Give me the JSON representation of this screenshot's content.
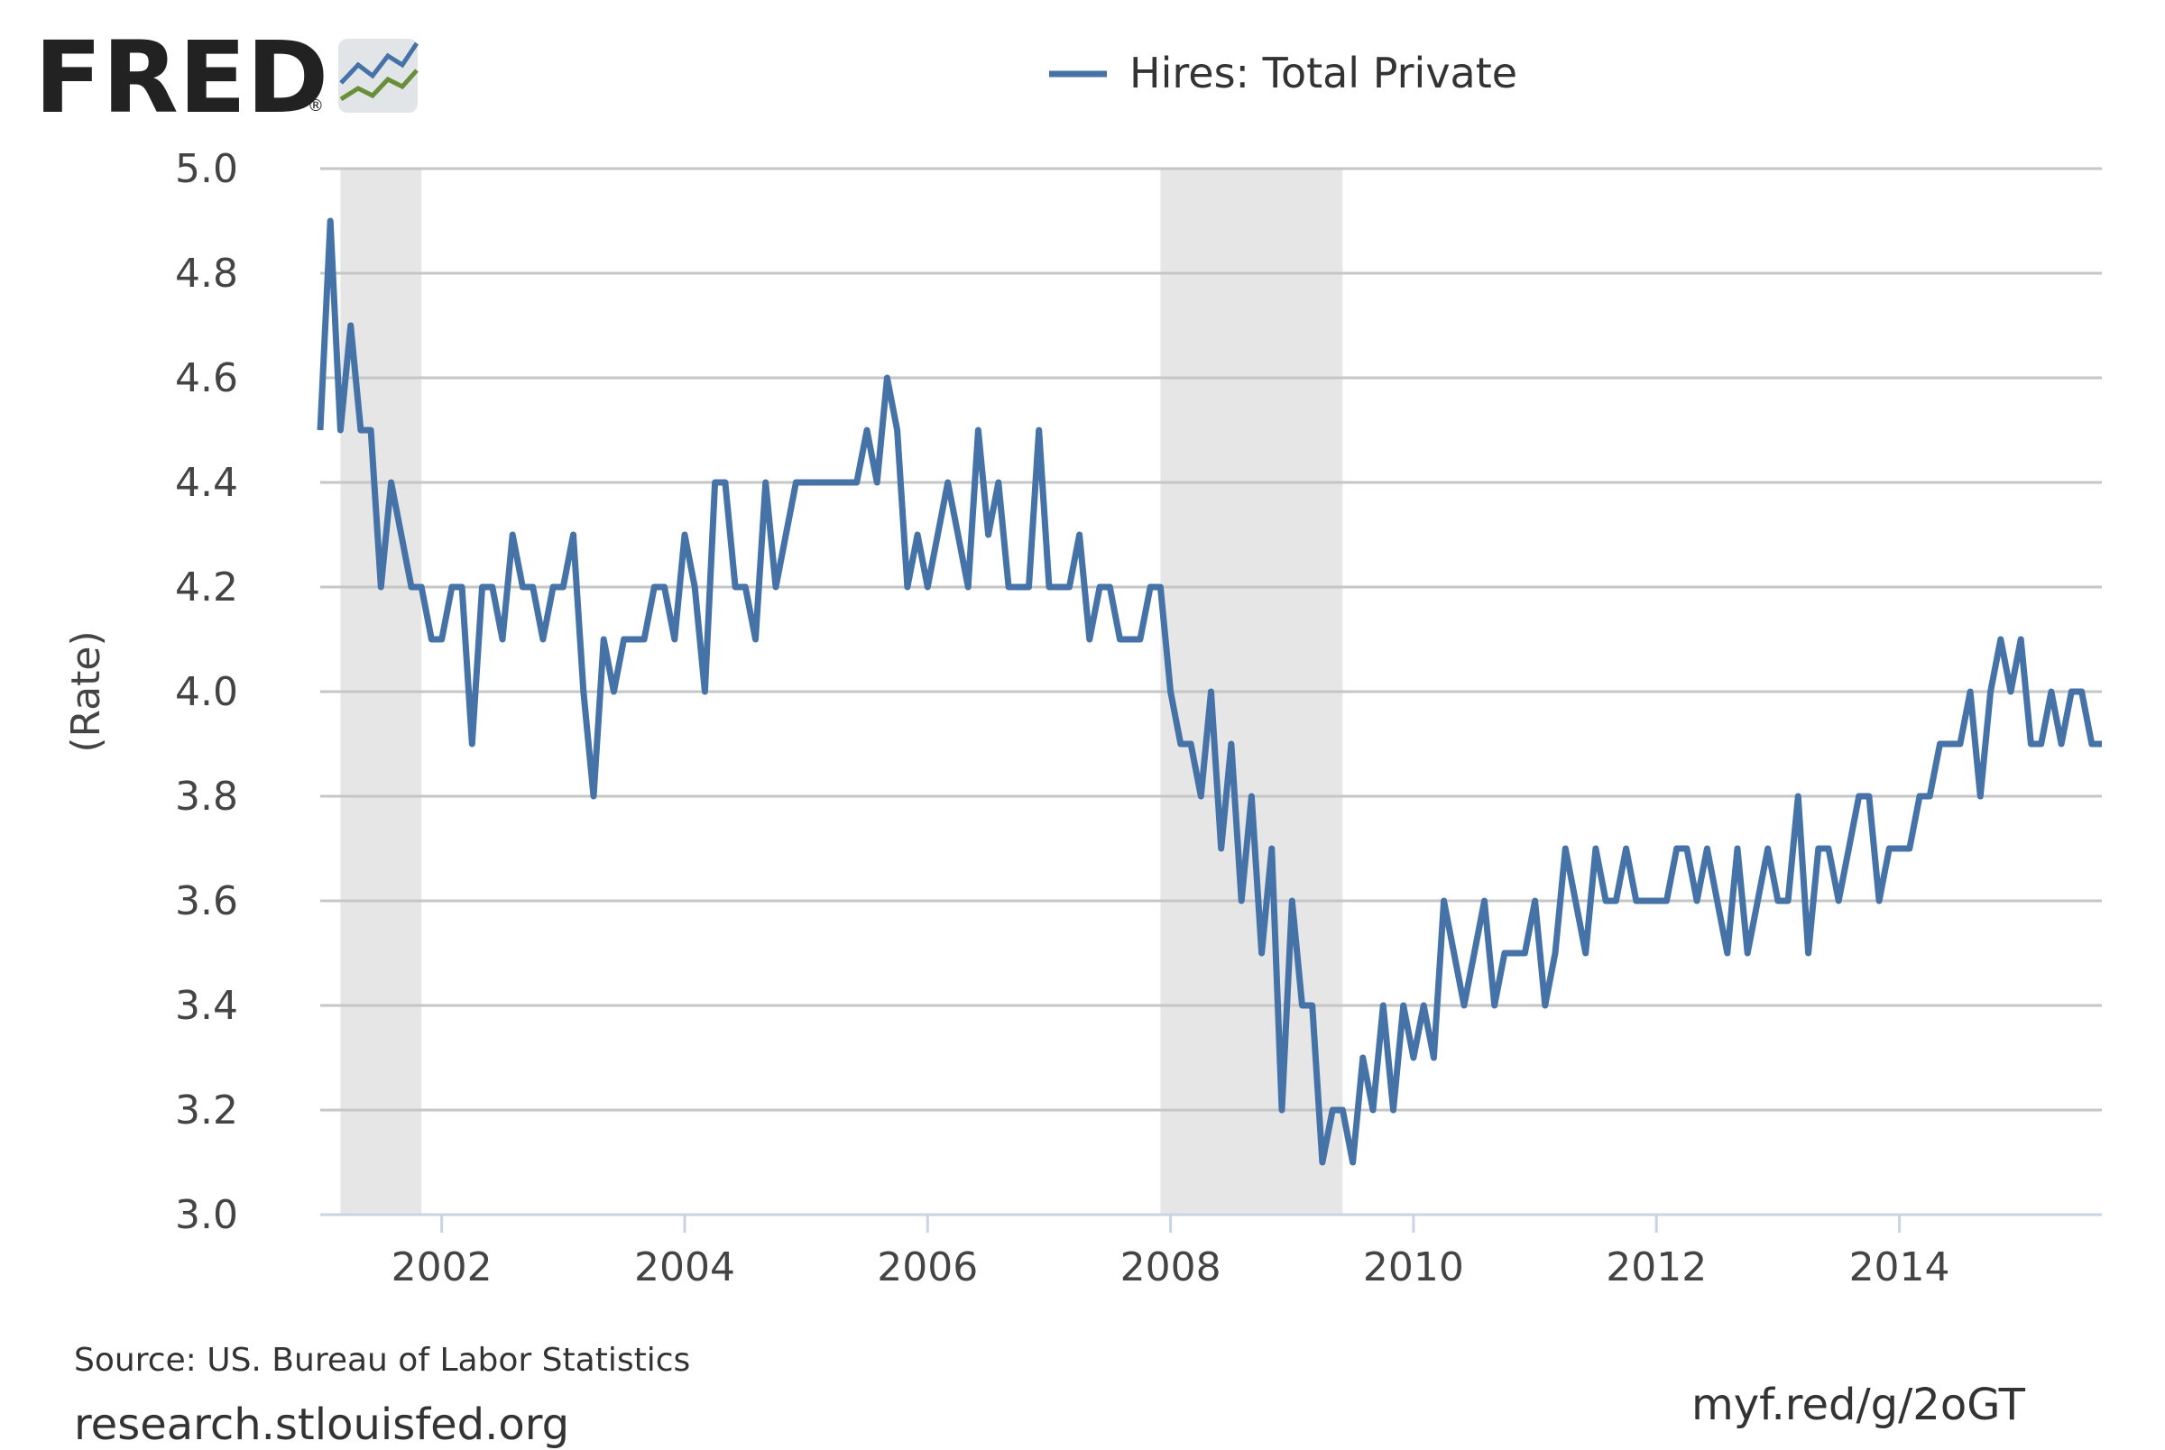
{
  "logo": {
    "text": "FRED",
    "registered": "®",
    "icon": "chart-sparkline-icon"
  },
  "chart_data": {
    "type": "line",
    "title": "",
    "xlabel": "",
    "ylabel": "(Rate)",
    "xlim": [
      2001.0,
      2015.6667
    ],
    "ylim": [
      3.0,
      5.0
    ],
    "yticks": [
      "3.0",
      "3.2",
      "3.4",
      "3.6",
      "3.8",
      "4.0",
      "4.2",
      "4.4",
      "4.6",
      "4.8",
      "5.0"
    ],
    "xticks": [
      "2002",
      "2004",
      "2006",
      "2008",
      "2010",
      "2012",
      "2014"
    ],
    "grid": true,
    "legend_position": "top-center",
    "recessions": [
      {
        "start": "2001-03",
        "end": "2001-11"
      },
      {
        "start": "2007-12",
        "end": "2009-06"
      }
    ],
    "start": "2001-01",
    "frequency": "monthly",
    "series": [
      {
        "name": "Hires: Total Private",
        "color": "#4572a7",
        "values": [
          4.5,
          4.9,
          4.5,
          4.7,
          4.5,
          4.5,
          4.2,
          4.4,
          4.3,
          4.2,
          4.2,
          4.1,
          4.1,
          4.2,
          4.2,
          3.9,
          4.2,
          4.2,
          4.1,
          4.3,
          4.2,
          4.2,
          4.1,
          4.2,
          4.2,
          4.3,
          4.0,
          3.8,
          4.1,
          4.0,
          4.1,
          4.1,
          4.1,
          4.2,
          4.2,
          4.1,
          4.3,
          4.2,
          4.0,
          4.4,
          4.4,
          4.2,
          4.2,
          4.1,
          4.4,
          4.2,
          4.3,
          4.4,
          4.4,
          4.4,
          4.4,
          4.4,
          4.4,
          4.4,
          4.5,
          4.4,
          4.6,
          4.5,
          4.2,
          4.3,
          4.2,
          4.3,
          4.4,
          4.3,
          4.2,
          4.5,
          4.3,
          4.4,
          4.2,
          4.2,
          4.2,
          4.5,
          4.2,
          4.2,
          4.2,
          4.3,
          4.1,
          4.2,
          4.2,
          4.1,
          4.1,
          4.1,
          4.2,
          4.2,
          4.0,
          3.9,
          3.9,
          3.8,
          4.0,
          3.7,
          3.9,
          3.6,
          3.8,
          3.5,
          3.7,
          3.2,
          3.6,
          3.4,
          3.4,
          3.1,
          3.2,
          3.2,
          3.1,
          3.3,
          3.2,
          3.4,
          3.2,
          3.4,
          3.3,
          3.4,
          3.3,
          3.6,
          3.5,
          3.4,
          3.5,
          3.6,
          3.4,
          3.5,
          3.5,
          3.5,
          3.6,
          3.4,
          3.5,
          3.7,
          3.6,
          3.5,
          3.7,
          3.6,
          3.6,
          3.7,
          3.6,
          3.6,
          3.6,
          3.6,
          3.7,
          3.7,
          3.6,
          3.7,
          3.6,
          3.5,
          3.7,
          3.5,
          3.6,
          3.7,
          3.6,
          3.6,
          3.8,
          3.5,
          3.7,
          3.7,
          3.6,
          3.7,
          3.8,
          3.8,
          3.6,
          3.7,
          3.7,
          3.7,
          3.8,
          3.8,
          3.9,
          3.9,
          3.9,
          4.0,
          3.8,
          4.0,
          4.1,
          4.0,
          4.1,
          3.9,
          3.9,
          4.0,
          3.9,
          4.0,
          4.0,
          3.9,
          3.9
        ]
      }
    ]
  },
  "footer": {
    "source": "Source: US. Bureau of Labor Statistics",
    "site": "research.stlouisfed.org",
    "short_link": "myf.red/g/2oGT"
  }
}
